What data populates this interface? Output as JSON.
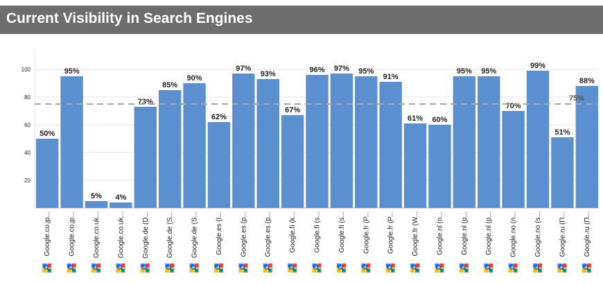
{
  "header": {
    "title": "Current Visibility in Search Engines"
  },
  "colors": {
    "bar": "#5b8fcf",
    "reference_line": "#a8a8a8",
    "header_bg": "#6d6d6d",
    "grid": "#e6e6e6"
  },
  "icon": "google-search-icon",
  "chart_data": {
    "type": "bar",
    "title": "",
    "xlabel": "",
    "ylabel": "",
    "ylim": [
      0,
      115
    ],
    "yticks": [
      20,
      40,
      60,
      80,
      100
    ],
    "grid": true,
    "categories": [
      "Google.co.jp...",
      "Google.co.jp...",
      "Google.co.uk...",
      "Google.co.uk...",
      "Google.de (D...",
      "Google.de (S...",
      "Google.de (S...",
      "Google.es (I...",
      "Google.es (p...",
      "Google.es (p...",
      "Google.fi (k...",
      "Google.fi (s...",
      "Google.fi (s...",
      "Google.fr (P...",
      "Google.fr (P...",
      "Google.fr (W...",
      "Google.nl (n...",
      "Google.nl (p...",
      "Google.nl (p...",
      "Google.no (n...",
      "Google.no (s...",
      "Google.ru (П...",
      "Google.ru (П..."
    ],
    "values": [
      50,
      95,
      5,
      4,
      73,
      85,
      90,
      62,
      97,
      93,
      67,
      96,
      97,
      95,
      91,
      61,
      60,
      95,
      95,
      70,
      99,
      51,
      88
    ],
    "value_labels": [
      "50%",
      "95%",
      "5%",
      "4%",
      "73%",
      "85%",
      "90%",
      "62%",
      "97%",
      "93%",
      "67%",
      "96%",
      "97%",
      "95%",
      "91%",
      "61%",
      "60%",
      "95%",
      "95%",
      "70%",
      "99%",
      "51%",
      "88%"
    ],
    "reference_line": {
      "value": 75,
      "label": "75%"
    }
  }
}
